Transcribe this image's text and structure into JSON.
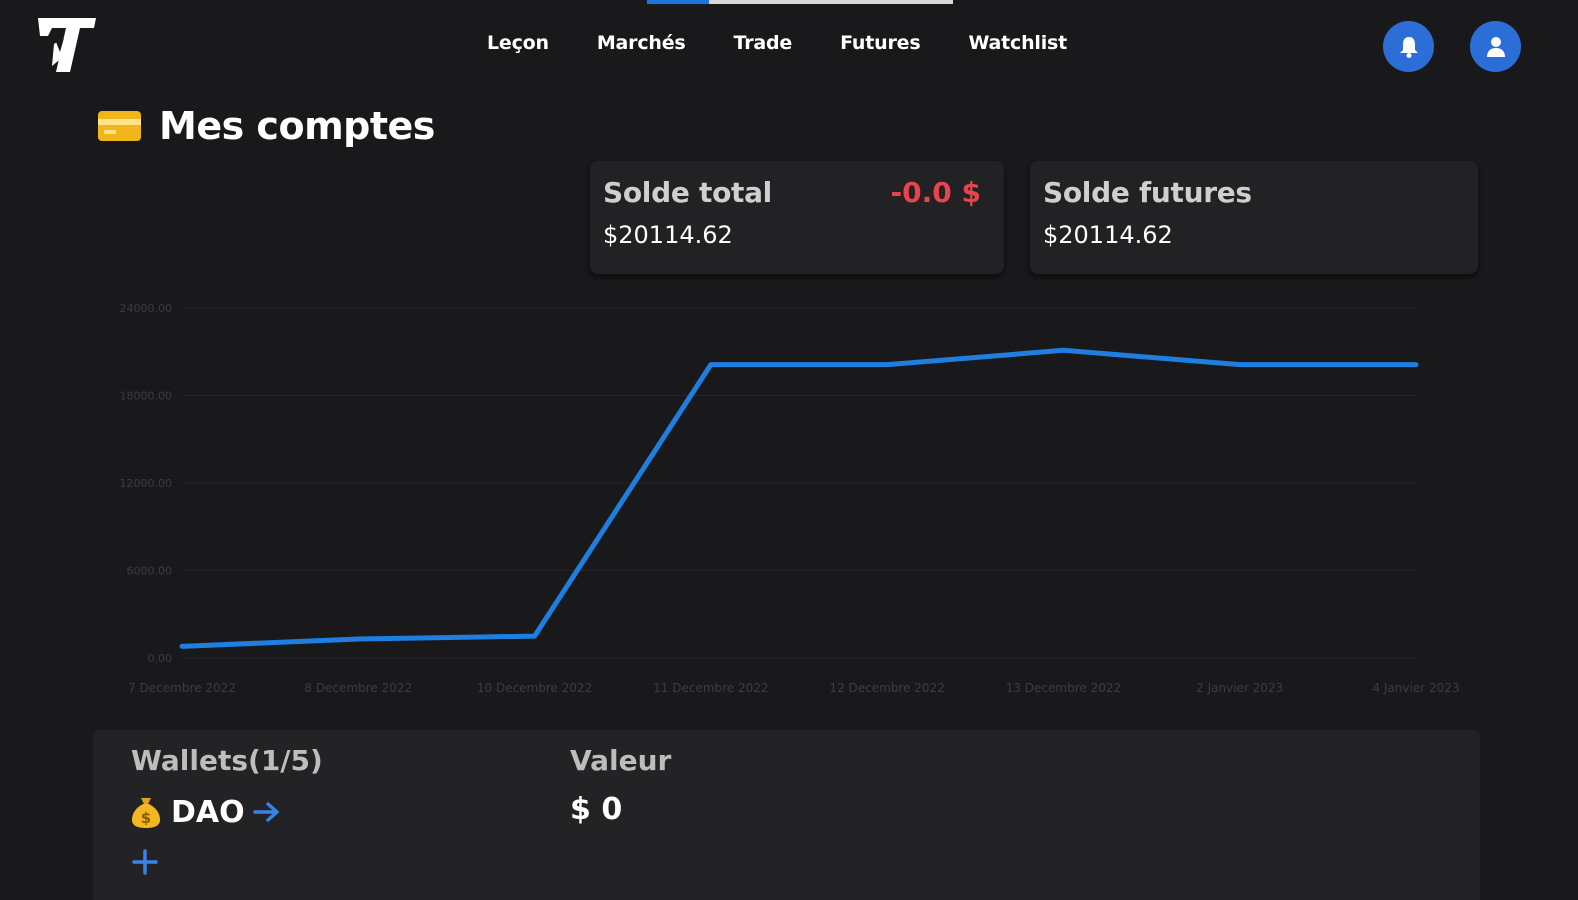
{
  "nav": {
    "items": [
      "Leçon",
      "Marchés",
      "Trade",
      "Futures",
      "Watchlist"
    ]
  },
  "header": {
    "icons": [
      "bell-icon",
      "user-icon"
    ],
    "accent_color": "#2c6ed7"
  },
  "page": {
    "title": "Mes comptes",
    "title_icon": "credit-card-icon"
  },
  "cards": {
    "total": {
      "label": "Solde total",
      "value": "$20114.62",
      "delta": "-0.0 $",
      "delta_color": "#e8444d"
    },
    "futures": {
      "label": "Solde futures",
      "value": "$20114.62"
    }
  },
  "chart_data": {
    "type": "line",
    "x": [
      "7 Decembre 2022",
      "8 Decembre 2022",
      "10 Decembre 2022",
      "11 Decembre 2022",
      "12 Decembre 2022",
      "13 Decembre 2022",
      "2 Janvier 2023",
      "4 Janvier 2023"
    ],
    "series": [
      {
        "values": [
          800,
          1300,
          1500,
          20114,
          20114,
          21100,
          20114,
          20114
        ],
        "color": "#1e7fe0"
      }
    ],
    "yticks": [
      "0.00",
      "6000.00",
      "12000.00",
      "18000.00",
      "24000.00"
    ],
    "ylim": [
      0,
      24000
    ],
    "grid": true
  },
  "wallets": {
    "header": "Wallets(1/5)",
    "value_header": "Valeur",
    "items": [
      {
        "name": "DAO",
        "icon": "money-bag-icon",
        "value": "$ 0"
      }
    ],
    "add_icon": "plus-icon"
  }
}
